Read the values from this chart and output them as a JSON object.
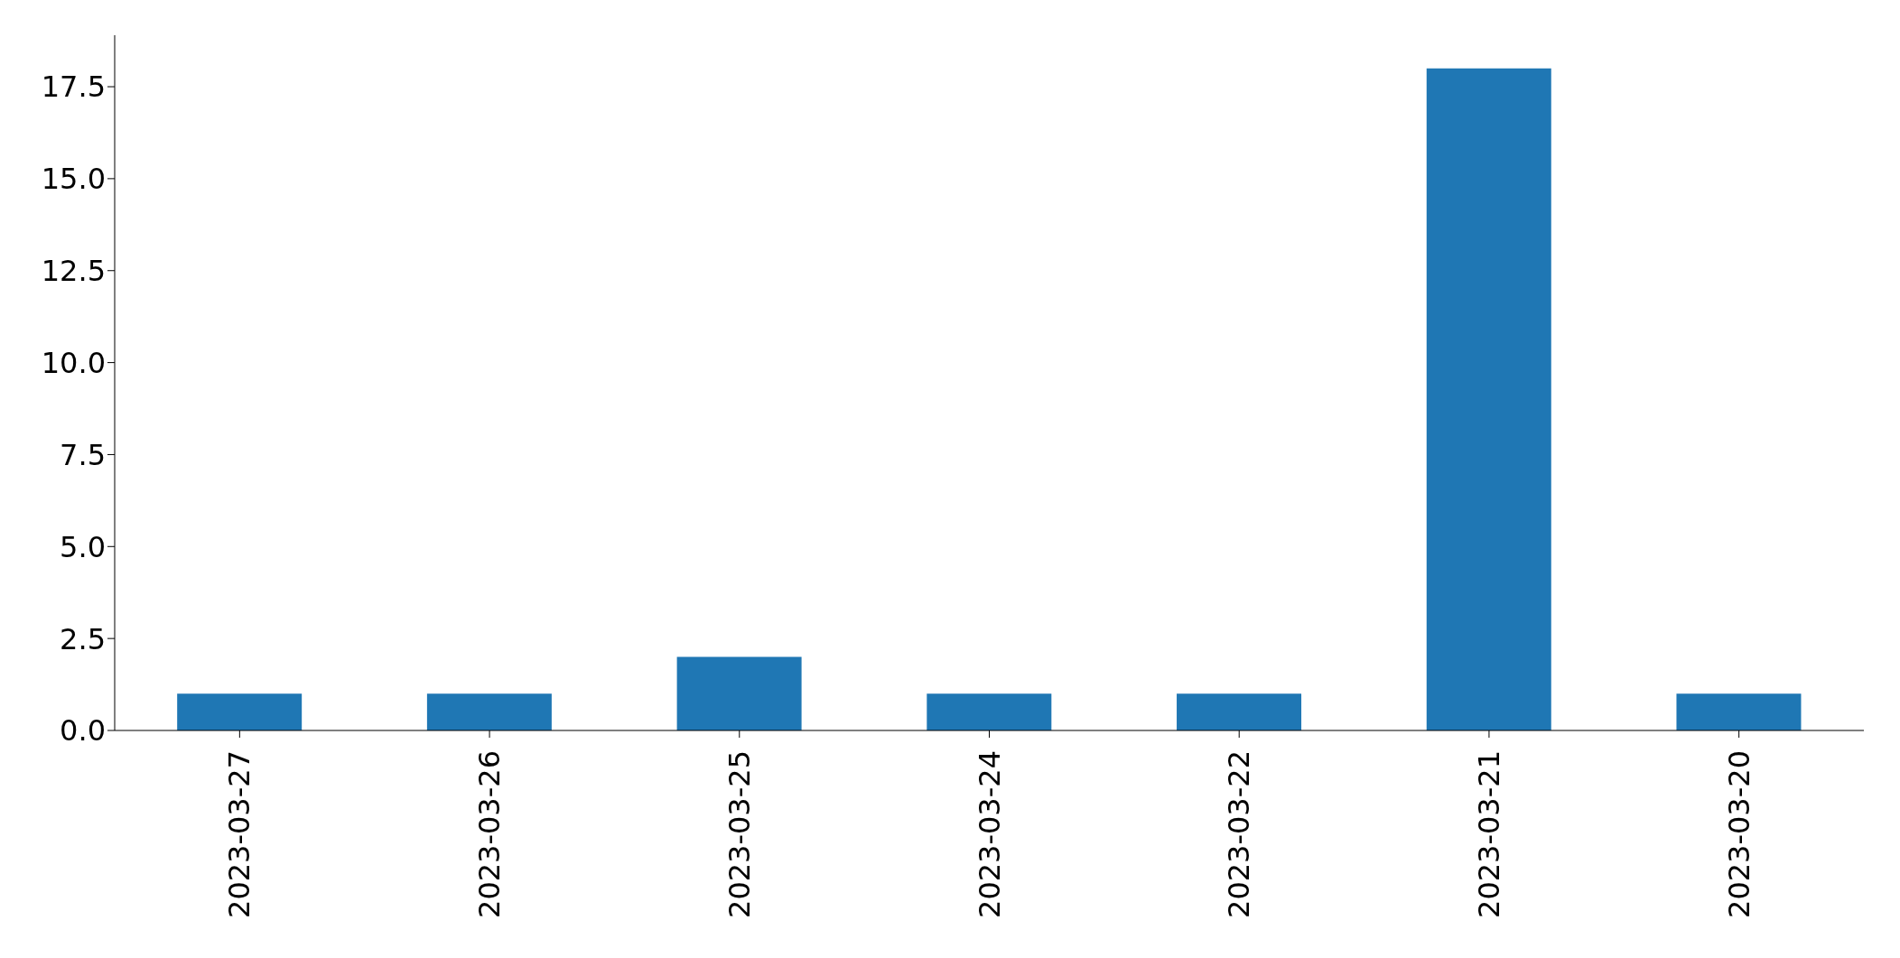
{
  "chart_data": {
    "type": "bar",
    "categories": [
      "2023-03-27",
      "2023-03-26",
      "2023-03-25",
      "2023-03-24",
      "2023-03-22",
      "2023-03-21",
      "2023-03-20"
    ],
    "values": [
      1,
      1,
      2,
      1,
      1,
      18,
      1
    ],
    "color": "#1f77b4",
    "ylim": [
      0,
      18.9
    ],
    "yticks": [
      {
        "value": 0,
        "label": "0.0"
      },
      {
        "value": 2.5,
        "label": "2.5"
      },
      {
        "value": 5,
        "label": "5.0"
      },
      {
        "value": 7.5,
        "label": "7.5"
      },
      {
        "value": 10,
        "label": "10.0"
      },
      {
        "value": 12.5,
        "label": "12.5"
      },
      {
        "value": 15,
        "label": "15.0"
      },
      {
        "value": 17.5,
        "label": "17.5"
      }
    ],
    "grid": false,
    "legend": false
  }
}
